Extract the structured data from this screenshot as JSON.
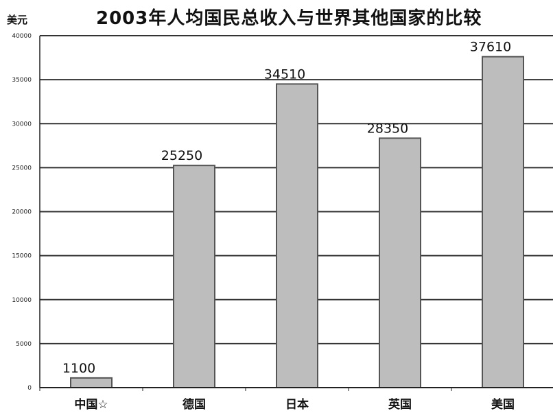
{
  "chart_data": {
    "type": "bar",
    "title": "2003年人均国民总收入与世界其他国家的比较",
    "ylabel": "美元",
    "xlabel": "",
    "categories": [
      "中国☆",
      "德国",
      "日本",
      "英国",
      "美国"
    ],
    "values": [
      1100,
      25250,
      34510,
      28350,
      37610
    ],
    "data_labels": [
      "1100",
      "25250",
      "34510",
      "28350",
      "37610"
    ],
    "ylim": [
      0,
      40000
    ],
    "yticks": [
      0,
      5000,
      10000,
      15000,
      20000,
      25000,
      30000,
      35000,
      40000
    ],
    "ytick_labels": [
      "0",
      "5000",
      "10000",
      "15000",
      "20000",
      "25000",
      "30000",
      "35000",
      "40000"
    ],
    "grid": true,
    "colors": {
      "bar_fill": "#bdbdbd",
      "bar_edge": "#555555",
      "grid": "#333333"
    }
  }
}
